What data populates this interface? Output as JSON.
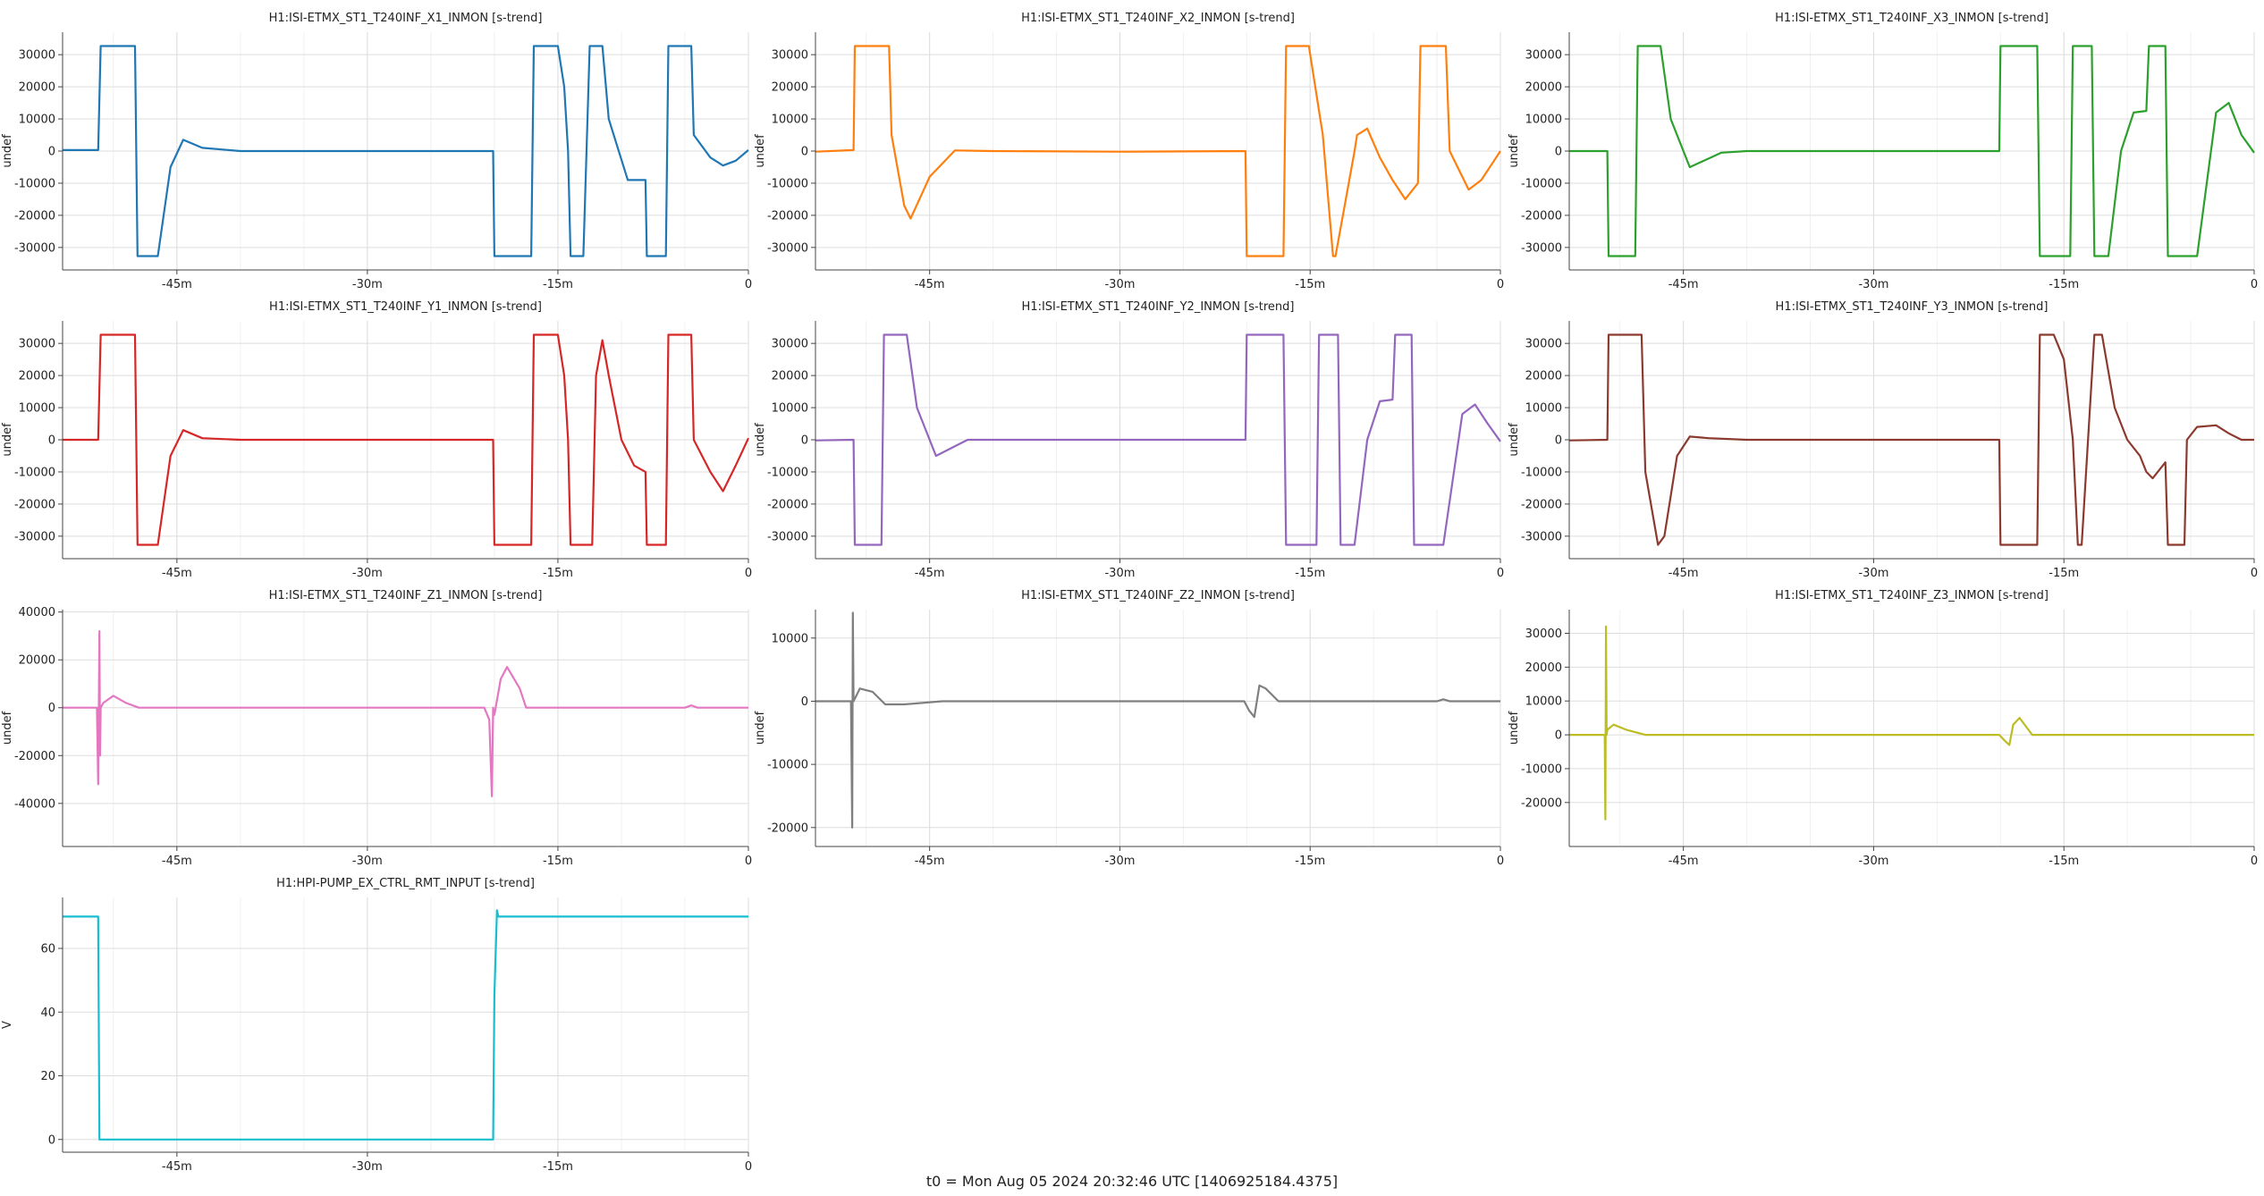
{
  "footer": {
    "t0": "t0 = Mon Aug 05 2024 20:32:46 UTC [1406925184.4375]"
  },
  "chart_data": [
    {
      "type": "line",
      "title": "H1:ISI-ETMX_ST1_T240INF_X1_INMON [s-trend]",
      "xlabel": "",
      "ylabel": "undef",
      "xlim": [
        -54,
        0
      ],
      "ylim": [
        -37000,
        37000
      ],
      "xticks": [
        -45,
        -30,
        -15,
        0
      ],
      "xtick_labels": [
        "-45m",
        "-30m",
        "-15m",
        "0"
      ],
      "yticks": [
        -30000,
        -20000,
        -10000,
        0,
        10000,
        20000,
        30000
      ],
      "grid": true,
      "color": "#1f77b4",
      "series": [
        {
          "x": [
            -54,
            -51.2,
            -51,
            -48.3,
            -48.1,
            -46.5,
            -45.5,
            -44.5,
            -43,
            -40,
            -30,
            -20.1,
            -20,
            -17.1,
            -16.9,
            -15,
            -14.5,
            -14.2,
            -14,
            -13,
            -12.5,
            -11.5,
            -11,
            -9.5,
            -8.1,
            -8,
            -6.5,
            -6.3,
            -4.5,
            -4.3,
            -3,
            -2,
            -1,
            0
          ],
          "y": [
            300,
            300,
            32700,
            32700,
            -32700,
            -32700,
            -5000,
            3500,
            1000,
            0,
            0,
            0,
            -32700,
            -32700,
            32700,
            32700,
            20000,
            0,
            -32700,
            -32700,
            32700,
            32700,
            10000,
            -9000,
            -9000,
            -32700,
            -32700,
            32700,
            32700,
            5000,
            -2000,
            -4500,
            -3000,
            300
          ]
        }
      ]
    },
    {
      "type": "line",
      "title": "H1:ISI-ETMX_ST1_T240INF_X2_INMON [s-trend]",
      "xlabel": "",
      "ylabel": "undef",
      "xlim": [
        -54,
        0
      ],
      "ylim": [
        -37000,
        37000
      ],
      "xticks": [
        -45,
        -30,
        -15,
        0
      ],
      "xtick_labels": [
        "-45m",
        "-30m",
        "-15m",
        "0"
      ],
      "yticks": [
        -30000,
        -20000,
        -10000,
        0,
        10000,
        20000,
        30000
      ],
      "grid": true,
      "color": "#ff7f0e",
      "series": [
        {
          "x": [
            -54,
            -51,
            -50.9,
            -48.2,
            -48,
            -47,
            -46.5,
            -45,
            -43,
            -40,
            -30,
            -20.1,
            -20,
            -17.1,
            -16.9,
            -15.1,
            -14,
            -13.2,
            -13,
            -11.5,
            -11.3,
            -10.5,
            -9.5,
            -8.5,
            -8,
            -7.5,
            -6.5,
            -6.3,
            -4.3,
            -4,
            -2.5,
            -1.5,
            -0.5,
            0
          ],
          "y": [
            -200,
            300,
            32700,
            32700,
            5000,
            -17000,
            -21000,
            -8000,
            200,
            0,
            -200,
            0,
            -32700,
            -32700,
            32700,
            32700,
            5000,
            -32700,
            -32700,
            0,
            5000,
            7000,
            -2000,
            -9000,
            -12000,
            -15000,
            -10000,
            32700,
            32700,
            0,
            -12000,
            -9000,
            -3000,
            0
          ]
        }
      ]
    },
    {
      "type": "line",
      "title": "H1:ISI-ETMX_ST1_T240INF_X3_INMON [s-trend]",
      "xlabel": "",
      "ylabel": "undef",
      "xlim": [
        -54,
        0
      ],
      "ylim": [
        -37000,
        37000
      ],
      "xticks": [
        -45,
        -30,
        -15,
        0
      ],
      "xtick_labels": [
        "-45m",
        "-30m",
        "-15m",
        "0"
      ],
      "yticks": [
        -30000,
        -20000,
        -10000,
        0,
        10000,
        20000,
        30000
      ],
      "grid": true,
      "color": "#2ca02c",
      "series": [
        {
          "x": [
            -54,
            -51,
            -50.9,
            -48.8,
            -48.6,
            -46.8,
            -46,
            -44.5,
            -42,
            -40,
            -30,
            -20.1,
            -20,
            -17.1,
            -16.9,
            -14.5,
            -14.3,
            -12.8,
            -12.6,
            -11.5,
            -10.5,
            -9.5,
            -8.5,
            -8.3,
            -7,
            -6.8,
            -6.5,
            -6,
            -5,
            -4.5,
            -3,
            -2,
            -1,
            0
          ],
          "y": [
            0,
            0,
            -32700,
            -32700,
            32700,
            32700,
            10000,
            -5000,
            -500,
            0,
            0,
            0,
            32700,
            32700,
            -32700,
            -32700,
            32700,
            32700,
            -32700,
            -32700,
            0,
            12000,
            12500,
            32700,
            32700,
            -32700,
            -32700,
            -32700,
            -32700,
            -32700,
            12000,
            15000,
            5000,
            -500
          ]
        }
      ]
    },
    {
      "type": "line",
      "title": "H1:ISI-ETMX_ST1_T240INF_Y1_INMON [s-trend]",
      "xlabel": "",
      "ylabel": "undef",
      "xlim": [
        -54,
        0
      ],
      "ylim": [
        -37000,
        37000
      ],
      "xticks": [
        -45,
        -30,
        -15,
        0
      ],
      "xtick_labels": [
        "-45m",
        "-30m",
        "-15m",
        "0"
      ],
      "yticks": [
        -30000,
        -20000,
        -10000,
        0,
        10000,
        20000,
        30000
      ],
      "grid": true,
      "color": "#d62728",
      "series": [
        {
          "x": [
            -54,
            -51.2,
            -51,
            -48.3,
            -48.1,
            -46.5,
            -45.5,
            -44.5,
            -43,
            -40,
            -30,
            -20.1,
            -20,
            -17.1,
            -16.9,
            -15,
            -14.5,
            -14.2,
            -14,
            -12.3,
            -12,
            -11.5,
            -11,
            -10,
            -9,
            -8.1,
            -8,
            -6.5,
            -6.3,
            -4.5,
            -4.3,
            -3,
            -2,
            -1,
            0
          ],
          "y": [
            0,
            0,
            32700,
            32700,
            -32700,
            -32700,
            -5000,
            3000,
            500,
            0,
            0,
            0,
            -32700,
            -32700,
            32700,
            32700,
            20000,
            0,
            -32700,
            -32700,
            20000,
            31000,
            20000,
            0,
            -8000,
            -10000,
            -32700,
            -32700,
            32700,
            32700,
            0,
            -10000,
            -16000,
            -8000,
            500
          ]
        }
      ]
    },
    {
      "type": "line",
      "title": "H1:ISI-ETMX_ST1_T240INF_Y2_INMON [s-trend]",
      "xlabel": "",
      "ylabel": "undef",
      "xlim": [
        -54,
        0
      ],
      "ylim": [
        -37000,
        37000
      ],
      "xticks": [
        -45,
        -30,
        -15,
        0
      ],
      "xtick_labels": [
        "-45m",
        "-30m",
        "-15m",
        "0"
      ],
      "yticks": [
        -30000,
        -20000,
        -10000,
        0,
        10000,
        20000,
        30000
      ],
      "grid": true,
      "color": "#9467bd",
      "series": [
        {
          "x": [
            -54,
            -51,
            -50.9,
            -48.8,
            -48.6,
            -46.8,
            -46,
            -44.5,
            -42,
            -40,
            -30,
            -20.1,
            -20,
            -17.1,
            -16.9,
            -14.5,
            -14.3,
            -12.8,
            -12.6,
            -11.5,
            -10.5,
            -9.5,
            -8.5,
            -8.3,
            -7,
            -6.8,
            -6.5,
            -6,
            -5,
            -4.5,
            -3,
            -2,
            -1,
            0
          ],
          "y": [
            -200,
            0,
            -32700,
            -32700,
            32700,
            32700,
            10000,
            -5000,
            0,
            0,
            0,
            0,
            32700,
            32700,
            -32700,
            -32700,
            32700,
            32700,
            -32700,
            -32700,
            0,
            12000,
            12500,
            32700,
            32700,
            -32700,
            -32700,
            -32700,
            -32700,
            -32700,
            8000,
            11000,
            5000,
            -500
          ]
        }
      ]
    },
    {
      "type": "line",
      "title": "H1:ISI-ETMX_ST1_T240INF_Y3_INMON [s-trend]",
      "xlabel": "",
      "ylabel": "undef",
      "xlim": [
        -54,
        0
      ],
      "ylim": [
        -37000,
        37000
      ],
      "xticks": [
        -45,
        -30,
        -15,
        0
      ],
      "xtick_labels": [
        "-45m",
        "-30m",
        "-15m",
        "0"
      ],
      "yticks": [
        -30000,
        -20000,
        -10000,
        0,
        10000,
        20000,
        30000
      ],
      "grid": true,
      "color": "#8c3a2f",
      "series": [
        {
          "x": [
            -54,
            -51,
            -50.9,
            -48.3,
            -48,
            -47,
            -46.5,
            -45.5,
            -44.5,
            -43,
            -40,
            -30,
            -20.1,
            -20,
            -17.1,
            -16.9,
            -15.8,
            -15,
            -14.3,
            -13.9,
            -13.6,
            -12.6,
            -12,
            -11,
            -10,
            -9,
            -8.5,
            -8,
            -7,
            -6.8,
            -5.5,
            -5.3,
            -4.5,
            -3,
            -2,
            -1,
            0
          ],
          "y": [
            -200,
            0,
            32700,
            32700,
            -10000,
            -32700,
            -30000,
            -5000,
            1000,
            500,
            0,
            0,
            0,
            -32700,
            -32700,
            32700,
            32700,
            25000,
            0,
            -32700,
            -32700,
            32700,
            32700,
            10000,
            0,
            -5000,
            -10000,
            -12000,
            -7000,
            -32700,
            -32700,
            0,
            4000,
            4500,
            2000,
            0,
            0
          ]
        }
      ]
    },
    {
      "type": "line",
      "title": "H1:ISI-ETMX_ST1_T240INF_Z1_INMON [s-trend]",
      "xlabel": "",
      "ylabel": "undef",
      "xlim": [
        -54,
        0
      ],
      "ylim": [
        -58000,
        41000
      ],
      "xticks": [
        -45,
        -30,
        -15,
        0
      ],
      "xtick_labels": [
        "-45m",
        "-30m",
        "-15m",
        "0"
      ],
      "yticks": [
        -40000,
        -20000,
        0,
        20000,
        40000
      ],
      "grid": true,
      "color": "#e377c2",
      "series": [
        {
          "x": [
            -54,
            -51.3,
            -51.2,
            -51.1,
            -51.05,
            -51,
            -50.8,
            -50,
            -49,
            -48,
            -46,
            -40,
            -30,
            -20.8,
            -20.4,
            -20.2,
            -20.1,
            -20,
            -19.5,
            -19,
            -18,
            -17.5,
            -17,
            -16,
            -10,
            -5,
            -4.5,
            -4,
            0
          ],
          "y": [
            0,
            0,
            -32000,
            32000,
            -20000,
            0,
            2000,
            5000,
            2000,
            0,
            0,
            0,
            0,
            0,
            -5000,
            -37000,
            0,
            -3000,
            12000,
            17000,
            8000,
            0,
            0,
            0,
            0,
            0,
            1000,
            0,
            0
          ]
        }
      ]
    },
    {
      "type": "line",
      "title": "H1:ISI-ETMX_ST1_T240INF_Z2_INMON [s-trend]",
      "xlabel": "",
      "ylabel": "undef",
      "xlim": [
        -54,
        0
      ],
      "ylim": [
        -23000,
        14500
      ],
      "xticks": [
        -45,
        -30,
        -15,
        0
      ],
      "xtick_labels": [
        "-45m",
        "-30m",
        "-15m",
        "0"
      ],
      "yticks": [
        -20000,
        -10000,
        0,
        10000
      ],
      "grid": true,
      "color": "#7f7f7f",
      "series": [
        {
          "x": [
            -54,
            -51.2,
            -51.1,
            -51.05,
            -51,
            -50.5,
            -49.5,
            -48.5,
            -47,
            -44,
            -30,
            -20.2,
            -19.8,
            -19.4,
            -19,
            -18.5,
            -17.5,
            -16,
            -10,
            -5,
            -4.5,
            -4,
            0
          ],
          "y": [
            0,
            0,
            -20000,
            14000,
            0,
            2000,
            1500,
            -500,
            -500,
            0,
            0,
            0,
            -1500,
            -2500,
            2500,
            2000,
            0,
            0,
            0,
            0,
            300,
            0,
            0
          ]
        }
      ]
    },
    {
      "type": "line",
      "title": "H1:ISI-ETMX_ST1_T240INF_Z3_INMON [s-trend]",
      "xlabel": "",
      "ylabel": "undef",
      "xlim": [
        -54,
        0
      ],
      "ylim": [
        -33000,
        37000
      ],
      "xticks": [
        -45,
        -30,
        -15,
        0
      ],
      "xtick_labels": [
        "-45m",
        "-30m",
        "-15m",
        "0"
      ],
      "yticks": [
        -20000,
        -10000,
        0,
        10000,
        20000,
        30000
      ],
      "grid": true,
      "color": "#bcbd22",
      "series": [
        {
          "x": [
            -54,
            -51.2,
            -51.15,
            -51.1,
            -51.05,
            -51,
            -50.5,
            -49.5,
            -48,
            -46,
            -30,
            -20.1,
            -19.6,
            -19.3,
            -19,
            -18.5,
            -17.5,
            -16,
            -10,
            0
          ],
          "y": [
            0,
            0,
            -25000,
            32000,
            0,
            1500,
            3000,
            1500,
            0,
            0,
            0,
            0,
            -2000,
            -3000,
            3000,
            5000,
            0,
            0,
            0,
            0
          ]
        }
      ]
    },
    {
      "type": "line",
      "title": "H1:HPI-PUMP_EX_CTRL_RMT_INPUT [s-trend]",
      "xlabel": "",
      "ylabel": "V",
      "xlim": [
        -54,
        0
      ],
      "ylim": [
        -4,
        76
      ],
      "xticks": [
        -45,
        -30,
        -15,
        0
      ],
      "xtick_labels": [
        "-45m",
        "-30m",
        "-15m",
        "0"
      ],
      "yticks": [
        0,
        20,
        40,
        60
      ],
      "grid": true,
      "color": "#17becf",
      "series": [
        {
          "x": [
            -54,
            -51.2,
            -51.1,
            -51,
            -40,
            -30,
            -20.1,
            -20.0,
            -19.8,
            -19.7,
            -19.6,
            0
          ],
          "y": [
            70,
            70,
            0,
            0,
            0,
            0,
            0,
            45,
            72,
            70,
            70,
            70
          ]
        }
      ]
    }
  ]
}
